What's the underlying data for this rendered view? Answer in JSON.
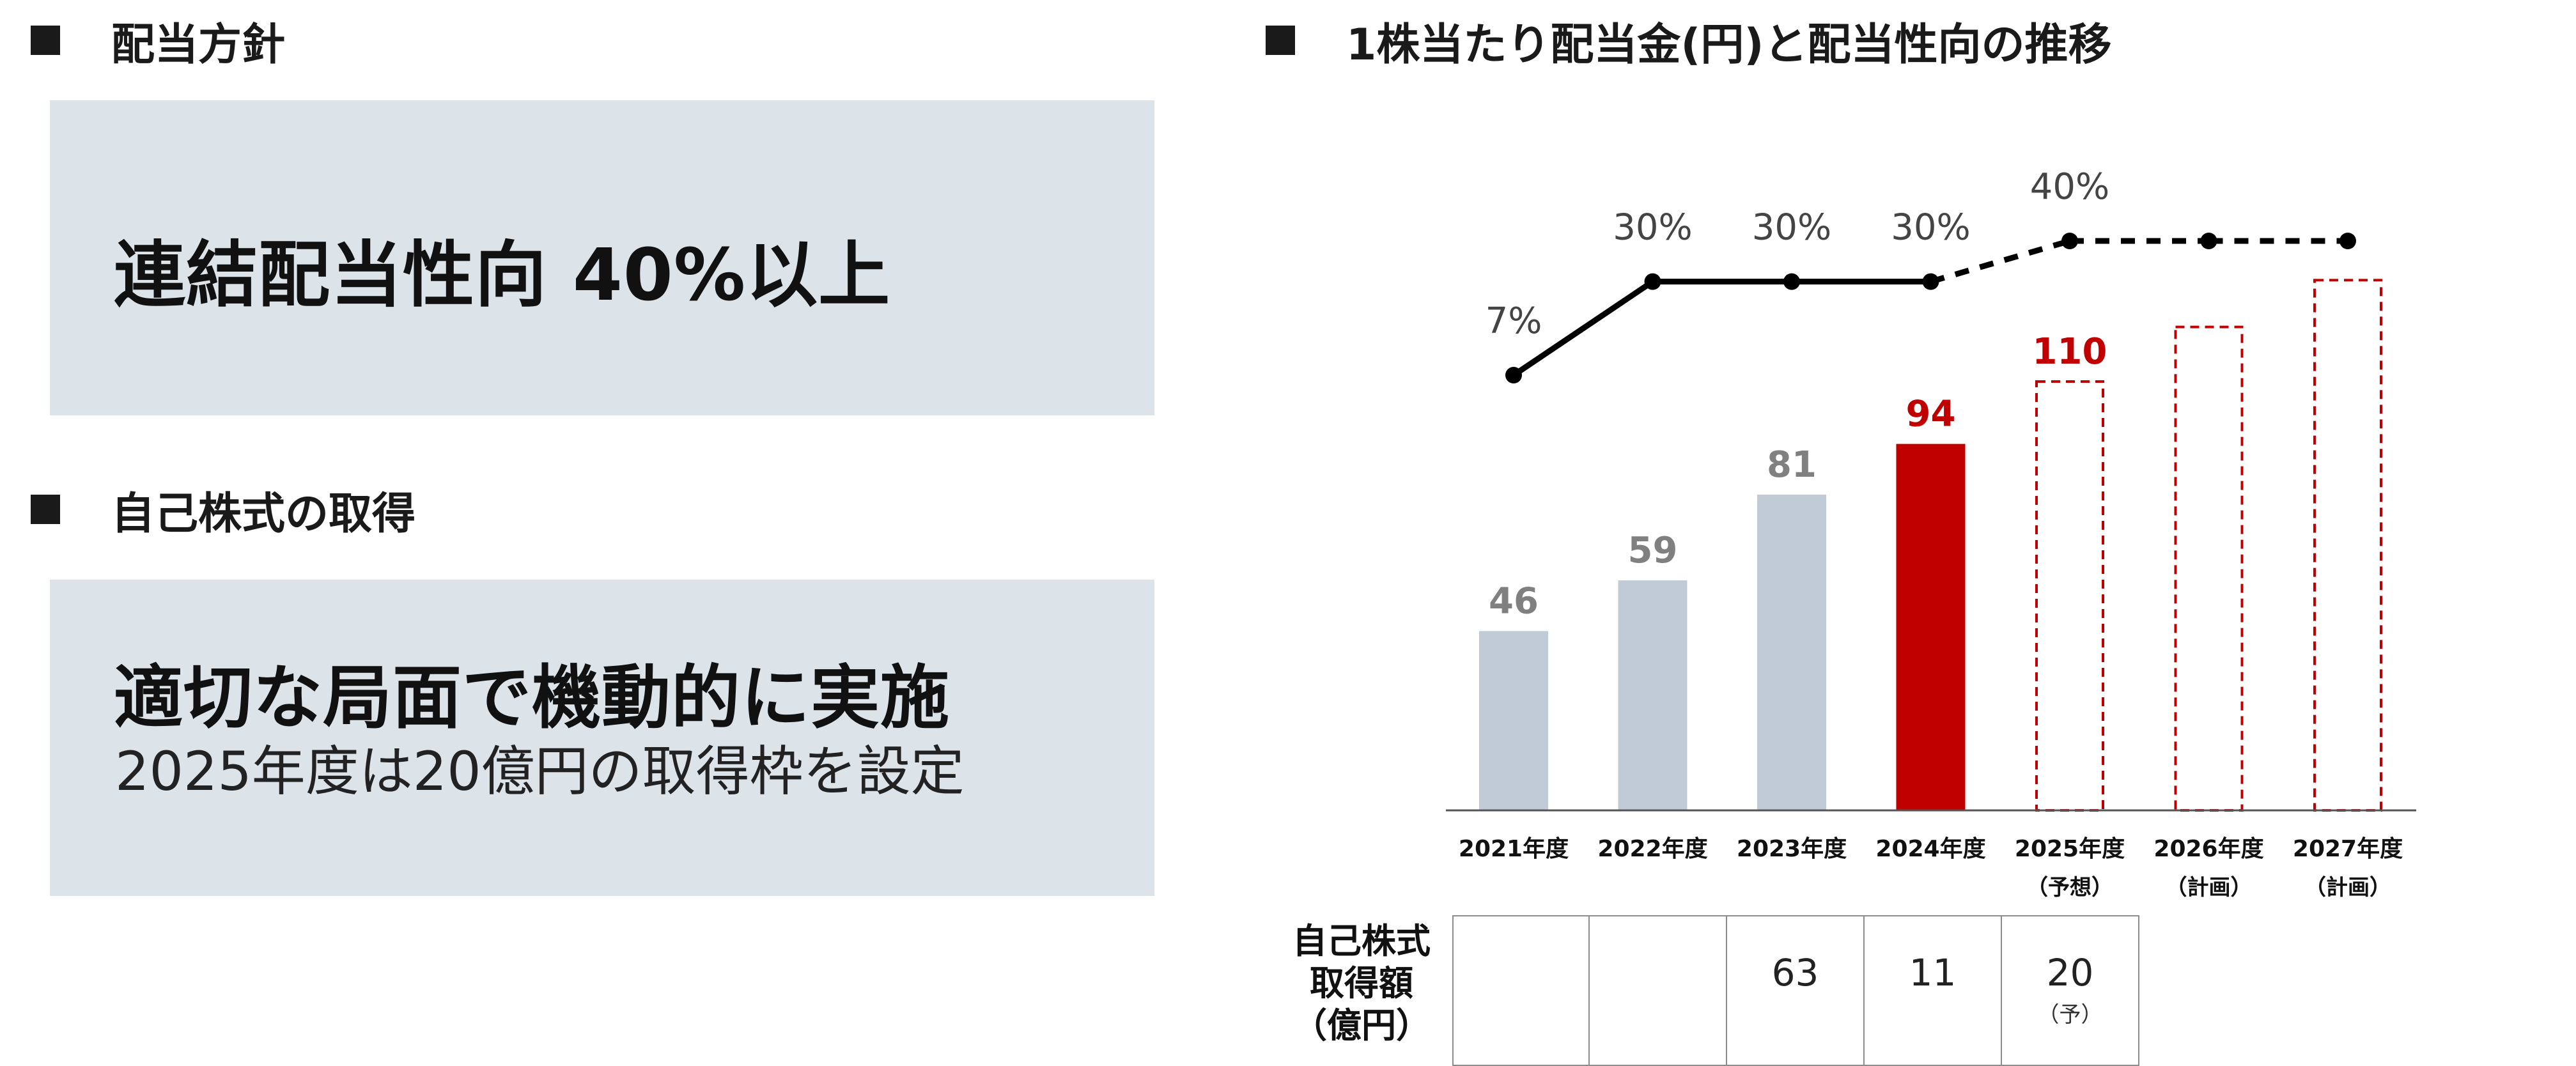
{
  "left": {
    "policy": {
      "heading": "配当方針",
      "main_text": "連結配当性向 40%以上"
    },
    "buyback": {
      "heading": "自己株式の取得",
      "main_text": "適切な局面で機動的に実施",
      "sub_text": "2025年度は20億円の取得枠を設定"
    }
  },
  "right": {
    "heading": "1株当たり配当金(円)と配当性向の推移"
  },
  "chart_data": {
    "type": "bar",
    "title": "1株当たり配当金(円)と配当性向の推移",
    "categories": [
      "2021年度",
      "2022年度",
      "2023年度",
      "2024年度",
      "2025年度",
      "2026年度",
      "2027年度"
    ],
    "category_notes": [
      "",
      "",
      "",
      "",
      "（予想）",
      "（計画）",
      "（計画）"
    ],
    "series": [
      {
        "values": [
          46,
          59,
          81,
          94,
          110,
          124,
          136
        ],
        "value_labels": [
          "46",
          "59",
          "81",
          "94",
          "110",
          "",
          ""
        ],
        "status": [
          "actual",
          "actual",
          "actual",
          "highlight",
          "forecast",
          "plan",
          "plan"
        ]
      },
      {
        "type": "line",
        "values": [
          7,
          30,
          30,
          30,
          40,
          40,
          40
        ],
        "value_labels": [
          "7%",
          "30%",
          "30%",
          "30%",
          "40%",
          "",
          ""
        ],
        "dashed_from_index": 3
      }
    ],
    "colors": {
      "actual_bar": "#c1cbd6",
      "highlight_bar": "#c00000",
      "forecast_outline": "#c00000",
      "actual_label": "#808080",
      "highlight_label": "#c00000",
      "line": "#000000"
    },
    "ylim": [
      0,
      160
    ],
    "grid": false,
    "legend": "none"
  },
  "buyback_table": {
    "label_lines": [
      "自己株式",
      "取得額",
      "（億円）"
    ],
    "cells": [
      {
        "value": "",
        "note": ""
      },
      {
        "value": "",
        "note": ""
      },
      {
        "value": "63",
        "note": ""
      },
      {
        "value": "11",
        "note": ""
      },
      {
        "value": "20",
        "note": "（予）"
      }
    ]
  }
}
